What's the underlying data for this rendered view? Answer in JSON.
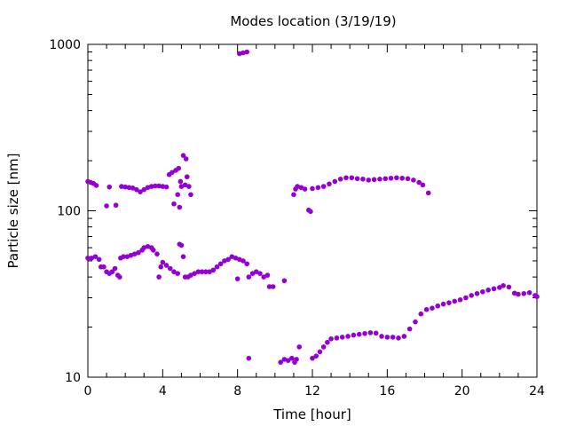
{
  "chart_data": {
    "type": "scatter",
    "title": "Modes location (3/19/19)",
    "xlabel": "Time [hour]",
    "ylabel": "Particle size [nm]",
    "xlim": [
      0,
      24
    ],
    "ylim": [
      10,
      1000
    ],
    "yscale": "log",
    "grid": false,
    "legend": "none",
    "marker_color": "#9400d3",
    "x_ticks": [
      {
        "value": 0,
        "label": "0"
      },
      {
        "value": 4,
        "label": "4"
      },
      {
        "value": 8,
        "label": "8"
      },
      {
        "value": 12,
        "label": "12"
      },
      {
        "value": 16,
        "label": "16"
      },
      {
        "value": 20,
        "label": "20"
      },
      {
        "value": 24,
        "label": "24"
      }
    ],
    "y_ticks": [
      {
        "value": 10,
        "label": "10"
      },
      {
        "value": 100,
        "label": "100"
      },
      {
        "value": 1000,
        "label": "1000"
      }
    ],
    "points": [
      [
        0.0,
        150
      ],
      [
        0.15,
        148
      ],
      [
        0.3,
        146
      ],
      [
        0.45,
        142
      ],
      [
        1.0,
        107
      ],
      [
        1.15,
        139
      ],
      [
        1.5,
        108
      ],
      [
        1.8,
        140
      ],
      [
        2.0,
        139
      ],
      [
        2.2,
        138
      ],
      [
        2.4,
        137
      ],
      [
        2.6,
        134
      ],
      [
        2.8,
        130
      ],
      [
        3.0,
        134
      ],
      [
        3.2,
        138
      ],
      [
        3.4,
        140
      ],
      [
        3.6,
        141
      ],
      [
        3.8,
        141
      ],
      [
        4.0,
        140
      ],
      [
        4.2,
        139
      ],
      [
        4.35,
        165
      ],
      [
        4.5,
        170
      ],
      [
        4.6,
        110
      ],
      [
        4.7,
        175
      ],
      [
        4.8,
        125
      ],
      [
        4.85,
        180
      ],
      [
        4.9,
        105
      ],
      [
        4.95,
        150
      ],
      [
        5.0,
        140
      ],
      [
        5.1,
        215
      ],
      [
        5.2,
        143
      ],
      [
        5.25,
        205
      ],
      [
        5.3,
        160
      ],
      [
        5.4,
        140
      ],
      [
        5.5,
        125
      ],
      [
        8.1,
        880
      ],
      [
        8.3,
        890
      ],
      [
        8.5,
        900
      ],
      [
        11.0,
        125
      ],
      [
        11.1,
        135
      ],
      [
        11.2,
        140
      ],
      [
        11.4,
        138
      ],
      [
        11.6,
        135
      ],
      [
        11.8,
        101
      ],
      [
        11.9,
        99
      ],
      [
        12.0,
        136
      ],
      [
        12.3,
        138
      ],
      [
        12.6,
        140
      ],
      [
        12.9,
        145
      ],
      [
        13.2,
        150
      ],
      [
        13.5,
        155
      ],
      [
        13.8,
        158
      ],
      [
        14.1,
        158
      ],
      [
        14.4,
        156
      ],
      [
        14.7,
        155
      ],
      [
        15.0,
        153
      ],
      [
        15.3,
        154
      ],
      [
        15.6,
        155
      ],
      [
        15.9,
        156
      ],
      [
        16.2,
        157
      ],
      [
        16.5,
        158
      ],
      [
        16.8,
        157
      ],
      [
        17.1,
        156
      ],
      [
        17.4,
        153
      ],
      [
        17.7,
        148
      ],
      [
        17.9,
        143
      ],
      [
        18.2,
        128
      ],
      [
        0.0,
        52
      ],
      [
        0.2,
        52
      ],
      [
        0.4,
        53
      ],
      [
        0.6,
        51
      ],
      [
        0.7,
        46
      ],
      [
        0.85,
        46
      ],
      [
        1.0,
        43
      ],
      [
        1.15,
        42
      ],
      [
        1.3,
        43
      ],
      [
        1.45,
        45
      ],
      [
        1.6,
        41
      ],
      [
        1.7,
        40
      ],
      [
        1.75,
        52
      ],
      [
        1.9,
        53
      ],
      [
        2.1,
        53
      ],
      [
        2.3,
        54
      ],
      [
        2.5,
        55
      ],
      [
        2.7,
        56
      ],
      [
        2.9,
        58
      ],
      [
        3.0,
        60
      ],
      [
        3.2,
        61
      ],
      [
        3.4,
        60
      ],
      [
        3.5,
        58
      ],
      [
        3.7,
        55
      ],
      [
        3.8,
        40
      ],
      [
        3.9,
        46
      ],
      [
        4.0,
        49
      ],
      [
        4.2,
        47
      ],
      [
        4.4,
        45
      ],
      [
        4.6,
        43
      ],
      [
        4.8,
        42
      ],
      [
        4.9,
        63
      ],
      [
        5.0,
        62
      ],
      [
        5.1,
        53
      ],
      [
        5.2,
        40
      ],
      [
        5.35,
        40
      ],
      [
        5.5,
        41
      ],
      [
        5.7,
        42
      ],
      [
        5.9,
        43
      ],
      [
        6.1,
        43
      ],
      [
        6.3,
        43
      ],
      [
        6.5,
        43
      ],
      [
        6.7,
        44
      ],
      [
        6.9,
        46
      ],
      [
        7.1,
        48
      ],
      [
        7.3,
        50
      ],
      [
        7.5,
        51
      ],
      [
        7.7,
        53
      ],
      [
        7.9,
        52
      ],
      [
        8.1,
        51
      ],
      [
        8.3,
        50
      ],
      [
        8.5,
        48
      ],
      [
        8.0,
        39
      ],
      [
        8.6,
        40
      ],
      [
        8.8,
        42
      ],
      [
        9.0,
        43
      ],
      [
        9.2,
        42
      ],
      [
        9.4,
        40
      ],
      [
        9.6,
        41
      ],
      [
        9.7,
        35
      ],
      [
        9.9,
        35
      ],
      [
        10.5,
        38
      ],
      [
        8.6,
        13
      ],
      [
        10.3,
        12.3
      ],
      [
        10.5,
        12.8
      ],
      [
        10.7,
        12.6
      ],
      [
        10.9,
        13.0
      ],
      [
        11.05,
        12.3
      ],
      [
        11.15,
        12.8
      ],
      [
        11.3,
        15.2
      ],
      [
        12.0,
        13.0
      ],
      [
        12.2,
        13.4
      ],
      [
        12.4,
        14.2
      ],
      [
        12.6,
        15.2
      ],
      [
        12.8,
        16.2
      ],
      [
        13.0,
        17.0
      ],
      [
        13.3,
        17.2
      ],
      [
        13.6,
        17.4
      ],
      [
        13.9,
        17.6
      ],
      [
        14.2,
        17.9
      ],
      [
        14.5,
        18.1
      ],
      [
        14.8,
        18.3
      ],
      [
        15.1,
        18.5
      ],
      [
        15.4,
        18.4
      ],
      [
        15.7,
        17.6
      ],
      [
        16.0,
        17.4
      ],
      [
        16.3,
        17.4
      ],
      [
        16.6,
        17.2
      ],
      [
        16.9,
        17.6
      ],
      [
        17.2,
        19.5
      ],
      [
        17.5,
        21.5
      ],
      [
        17.8,
        24.0
      ],
      [
        18.1,
        25.5
      ],
      [
        18.4,
        26.0
      ],
      [
        18.7,
        26.8
      ],
      [
        19.0,
        27.5
      ],
      [
        19.3,
        28.0
      ],
      [
        19.6,
        28.6
      ],
      [
        19.9,
        29.2
      ],
      [
        20.2,
        30.0
      ],
      [
        20.5,
        31.0
      ],
      [
        20.8,
        31.8
      ],
      [
        21.1,
        32.6
      ],
      [
        21.4,
        33.4
      ],
      [
        21.7,
        34.0
      ],
      [
        22.0,
        34.6
      ],
      [
        22.2,
        35.5
      ],
      [
        22.5,
        34.8
      ],
      [
        22.8,
        32.0
      ],
      [
        23.0,
        31.5
      ],
      [
        23.3,
        31.8
      ],
      [
        23.6,
        32.2
      ],
      [
        23.9,
        31.0
      ],
      [
        24.0,
        30.5
      ]
    ]
  }
}
